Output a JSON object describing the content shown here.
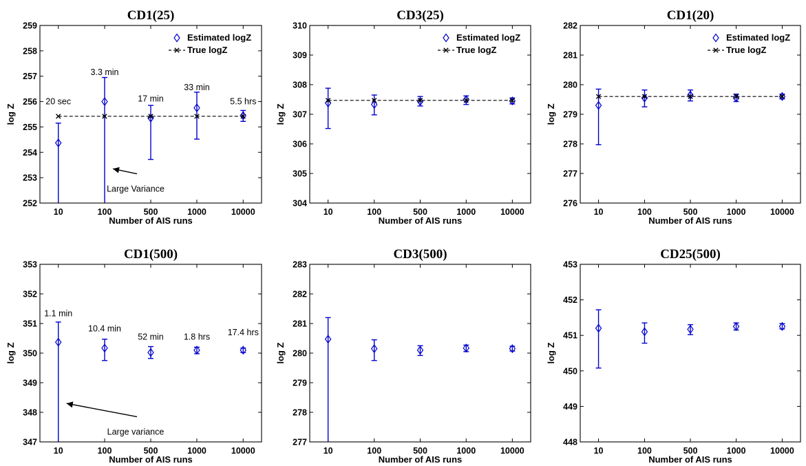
{
  "colors": {
    "estimated": "#0000cc",
    "true": "#000000",
    "axis": "#000000",
    "annotation_arrow": "#000000"
  },
  "chart_data": [
    {
      "type": "scatter",
      "title": "CD1(25)",
      "xlabel": "Number of AIS runs",
      "ylabel": "log Z",
      "categories": [
        "10",
        "100",
        "500",
        "1000",
        "10000"
      ],
      "ylim": [
        252,
        259
      ],
      "yticks": [
        252,
        253,
        254,
        255,
        256,
        257,
        258,
        259
      ],
      "series": [
        {
          "name": "Estimated logZ",
          "marker": "diamond",
          "values": [
            254.37,
            256.0,
            255.35,
            255.75,
            255.45
          ],
          "err_low": [
            252.0,
            252.0,
            253.72,
            254.52,
            255.22
          ],
          "err_high": [
            255.15,
            256.95,
            255.85,
            256.37,
            255.65
          ]
        },
        {
          "name": "True logZ",
          "marker": "x",
          "line": "dashed",
          "values": [
            255.42,
            255.42,
            255.42,
            255.42,
            255.42
          ]
        }
      ],
      "legend": "top-right",
      "annotations": [
        {
          "text": "20 sec",
          "x": "10",
          "y": 255.9
        },
        {
          "text": "3.3 min",
          "x": "100",
          "y": 257.05
        },
        {
          "text": "17 min",
          "x": "500",
          "y": 256.0
        },
        {
          "text": "33 min",
          "x": "1000",
          "y": 256.45
        },
        {
          "text": "5.5 hrs",
          "x": "10000",
          "y": 255.9
        },
        {
          "text": "Large Variance",
          "arrow_from": [
            "500",
            253.15
          ],
          "arrow_to": [
            "100",
            253.35
          ]
        }
      ]
    },
    {
      "type": "scatter",
      "title": "CD3(25)",
      "xlabel": "Number of AIS runs",
      "ylabel": "log Z",
      "categories": [
        "10",
        "100",
        "500",
        "1000",
        "10000"
      ],
      "ylim": [
        304,
        310
      ],
      "yticks": [
        304,
        305,
        306,
        307,
        308,
        309,
        310
      ],
      "series": [
        {
          "name": "Estimated logZ",
          "marker": "diamond",
          "values": [
            307.38,
            307.33,
            307.43,
            307.5,
            307.45
          ],
          "err_low": [
            306.52,
            306.98,
            307.28,
            307.33,
            307.35
          ],
          "err_high": [
            307.88,
            307.65,
            307.6,
            307.62,
            307.55
          ]
        },
        {
          "name": "True logZ",
          "marker": "x",
          "line": "dashed",
          "values": [
            307.47,
            307.47,
            307.47,
            307.47,
            307.47
          ]
        }
      ],
      "legend": "top-right"
    },
    {
      "type": "scatter",
      "title": "CD1(20)",
      "xlabel": "Number of AIS runs",
      "ylabel": "log Z",
      "categories": [
        "10",
        "100",
        "500",
        "1000",
        "10000"
      ],
      "ylim": [
        276,
        282
      ],
      "yticks": [
        276,
        277,
        278,
        279,
        280,
        281,
        282
      ],
      "series": [
        {
          "name": "Estimated logZ",
          "marker": "diamond",
          "values": [
            279.3,
            279.55,
            279.65,
            279.55,
            279.6
          ],
          "err_low": [
            277.97,
            279.25,
            279.45,
            279.43,
            279.52
          ],
          "err_high": [
            279.85,
            279.82,
            279.82,
            279.68,
            279.68
          ]
        },
        {
          "name": "True logZ",
          "marker": "x",
          "line": "dashed",
          "values": [
            279.6,
            279.6,
            279.6,
            279.6,
            279.6
          ]
        }
      ],
      "legend": "top-right"
    },
    {
      "type": "scatter",
      "title": "CD1(500)",
      "xlabel": "Number of AIS runs",
      "ylabel": "log Z",
      "categories": [
        "10",
        "100",
        "500",
        "1000",
        "10000"
      ],
      "ylim": [
        347,
        353
      ],
      "yticks": [
        347,
        348,
        349,
        350,
        351,
        352,
        353
      ],
      "series": [
        {
          "name": "Estimated logZ",
          "marker": "diamond",
          "values": [
            350.37,
            350.17,
            350.02,
            350.1,
            350.1
          ],
          "err_low": [
            347.0,
            349.75,
            349.82,
            349.98,
            350.02
          ],
          "err_high": [
            351.05,
            350.47,
            350.22,
            350.2,
            350.17
          ]
        }
      ],
      "annotations": [
        {
          "text": "1.1 min",
          "x": "10",
          "y": 351.25
        },
        {
          "text": "10.4 min",
          "x": "100",
          "y": 350.73
        },
        {
          "text": "52 min",
          "x": "500",
          "y": 350.45
        },
        {
          "text": "1.8 hrs",
          "x": "1000",
          "y": 350.45
        },
        {
          "text": "17.4 hrs",
          "x": "10000",
          "y": 350.6
        },
        {
          "text": "Large variance",
          "arrow_from": [
            "500",
            347.85
          ],
          "arrow_to": [
            "10",
            348.3
          ]
        }
      ]
    },
    {
      "type": "scatter",
      "title": "CD3(500)",
      "xlabel": "Number of AIS runs",
      "ylabel": "log Z",
      "categories": [
        "10",
        "100",
        "500",
        "1000",
        "10000"
      ],
      "ylim": [
        277,
        283
      ],
      "yticks": [
        277,
        278,
        279,
        280,
        281,
        282,
        283
      ],
      "series": [
        {
          "name": "Estimated logZ",
          "marker": "diamond",
          "values": [
            280.47,
            280.15,
            280.1,
            280.17,
            280.15
          ],
          "err_low": [
            277.0,
            279.75,
            279.92,
            280.05,
            280.07
          ],
          "err_high": [
            281.2,
            280.45,
            280.25,
            280.27,
            280.23
          ]
        }
      ]
    },
    {
      "type": "scatter",
      "title": "CD25(500)",
      "xlabel": "Number of AIS runs",
      "ylabel": "log Z",
      "categories": [
        "10",
        "100",
        "500",
        "1000",
        "10000"
      ],
      "ylim": [
        448,
        453
      ],
      "yticks": [
        448,
        449,
        450,
        451,
        452,
        453
      ],
      "series": [
        {
          "name": "Estimated logZ",
          "marker": "diamond",
          "values": [
            451.2,
            451.1,
            451.17,
            451.25,
            451.25
          ],
          "err_low": [
            450.08,
            450.78,
            451.02,
            451.15,
            451.18
          ],
          "err_high": [
            451.72,
            451.35,
            451.3,
            451.35,
            451.33
          ]
        }
      ]
    }
  ]
}
